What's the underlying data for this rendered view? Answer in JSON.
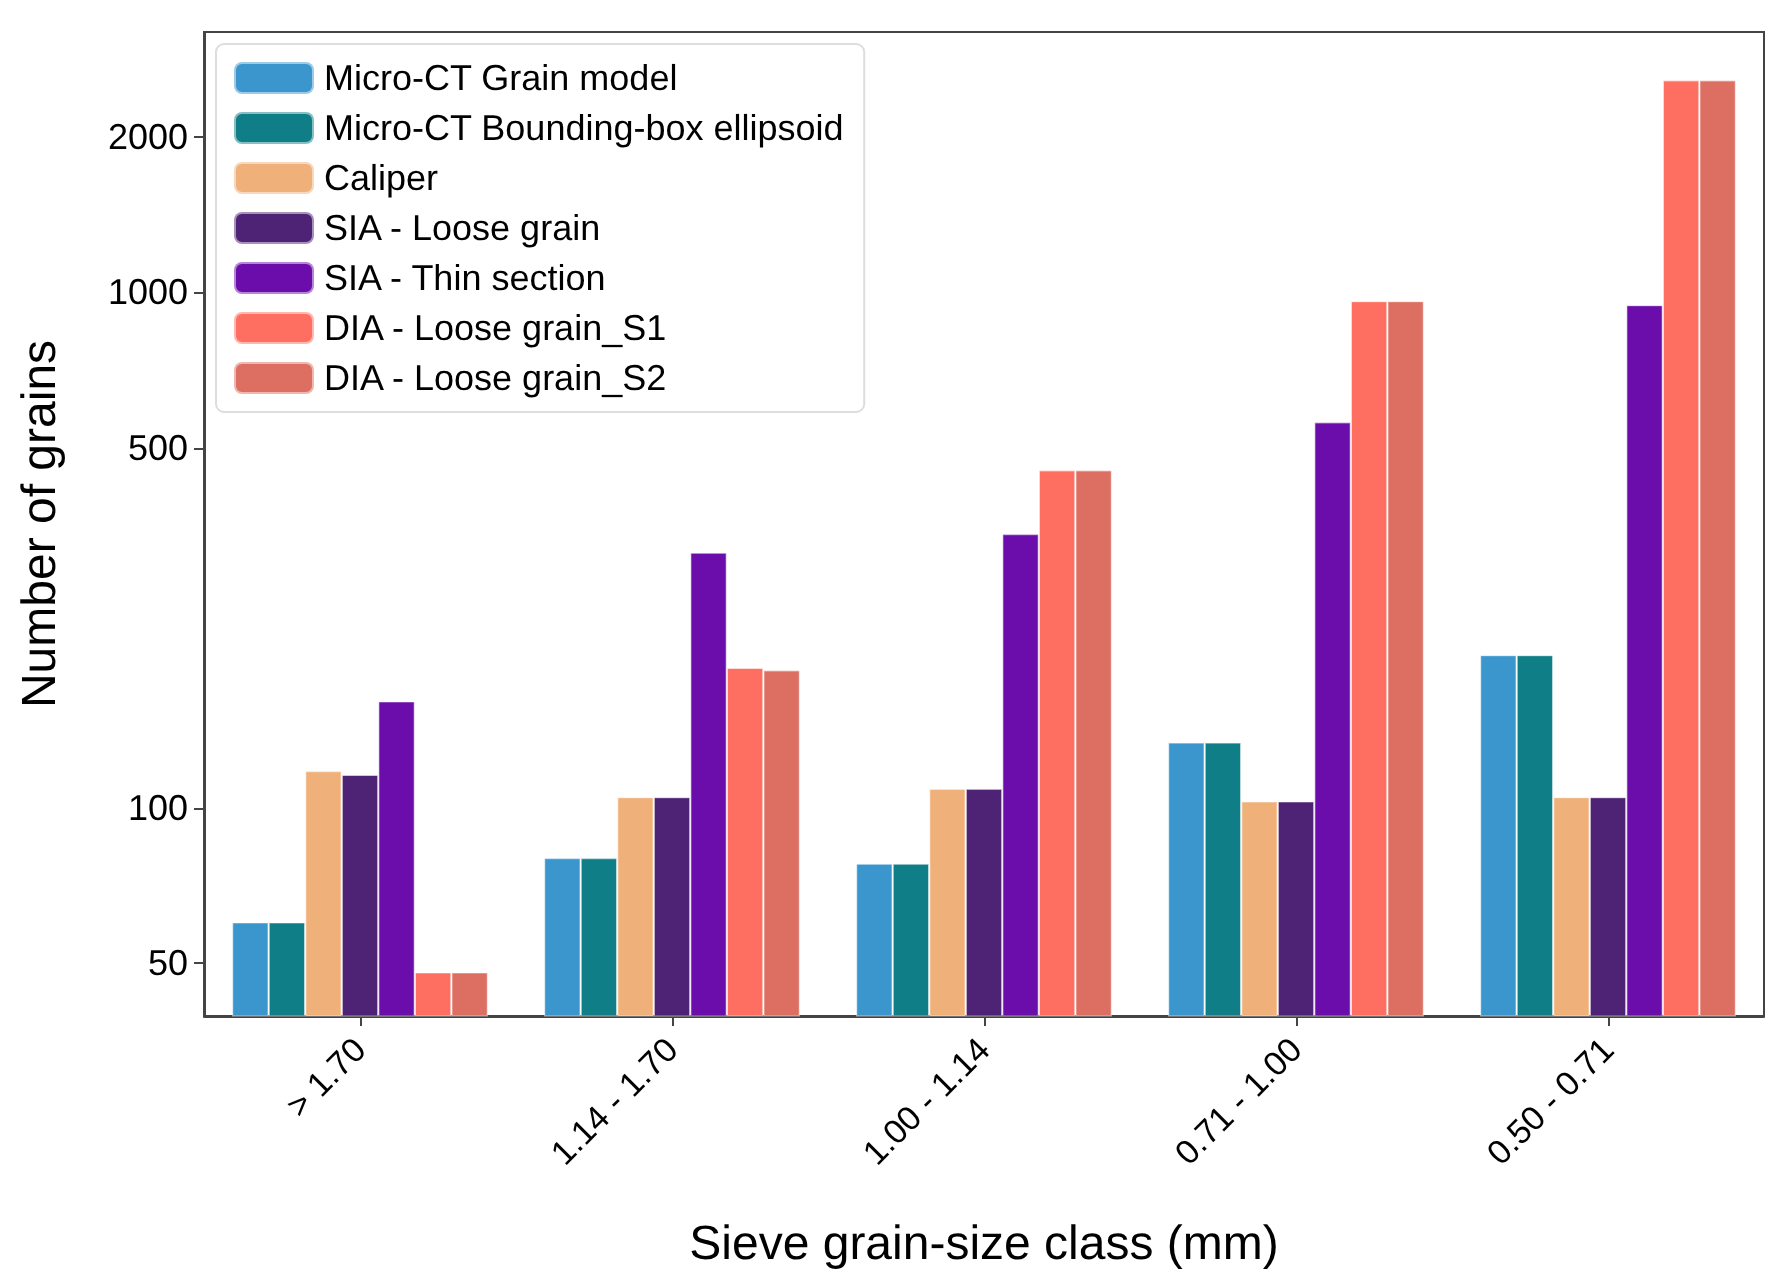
{
  "chart_data": {
    "type": "bar",
    "xlabel": "Sieve grain-size class (mm)",
    "ylabel": "Number of grains",
    "categories": [
      "> 1.70",
      "1.14 - 1.70",
      "1.00 - 1.14",
      "0.71 - 1.00",
      "0.50 - 0.71"
    ],
    "series": [
      {
        "name": "Micro-CT Grain model",
        "color": "#3a96cd",
        "values": [
          60,
          80,
          78,
          134,
          198
        ]
      },
      {
        "name": "Micro-CT Bounding-box ellipsoid",
        "color": "#0f7e87",
        "values": [
          60,
          80,
          78,
          134,
          198
        ]
      },
      {
        "name": "Caliper",
        "color": "#f0b07a",
        "values": [
          118,
          105,
          109,
          103,
          105
        ]
      },
      {
        "name": "SIA - Loose grain",
        "color": "#4e2275",
        "values": [
          116,
          105,
          109,
          103,
          105
        ]
      },
      {
        "name": "SIA - Thin section",
        "color": "#6a0dab",
        "values": [
          161,
          313,
          340,
          560,
          945
        ]
      },
      {
        "name": "DIA - Loose grain_S1",
        "color": "#ff6f61",
        "values": [
          48,
          187,
          452,
          962,
          2580
        ]
      },
      {
        "name": "DIA - Loose grain_S2",
        "color": "#dd6f62",
        "values": [
          48,
          185,
          452,
          962,
          2580
        ]
      }
    ],
    "log": "y",
    "ylim": [
      39.5,
      3200
    ],
    "yticks": [
      50,
      100,
      500,
      1000,
      2000
    ],
    "grid": false,
    "legend": "top left"
  }
}
